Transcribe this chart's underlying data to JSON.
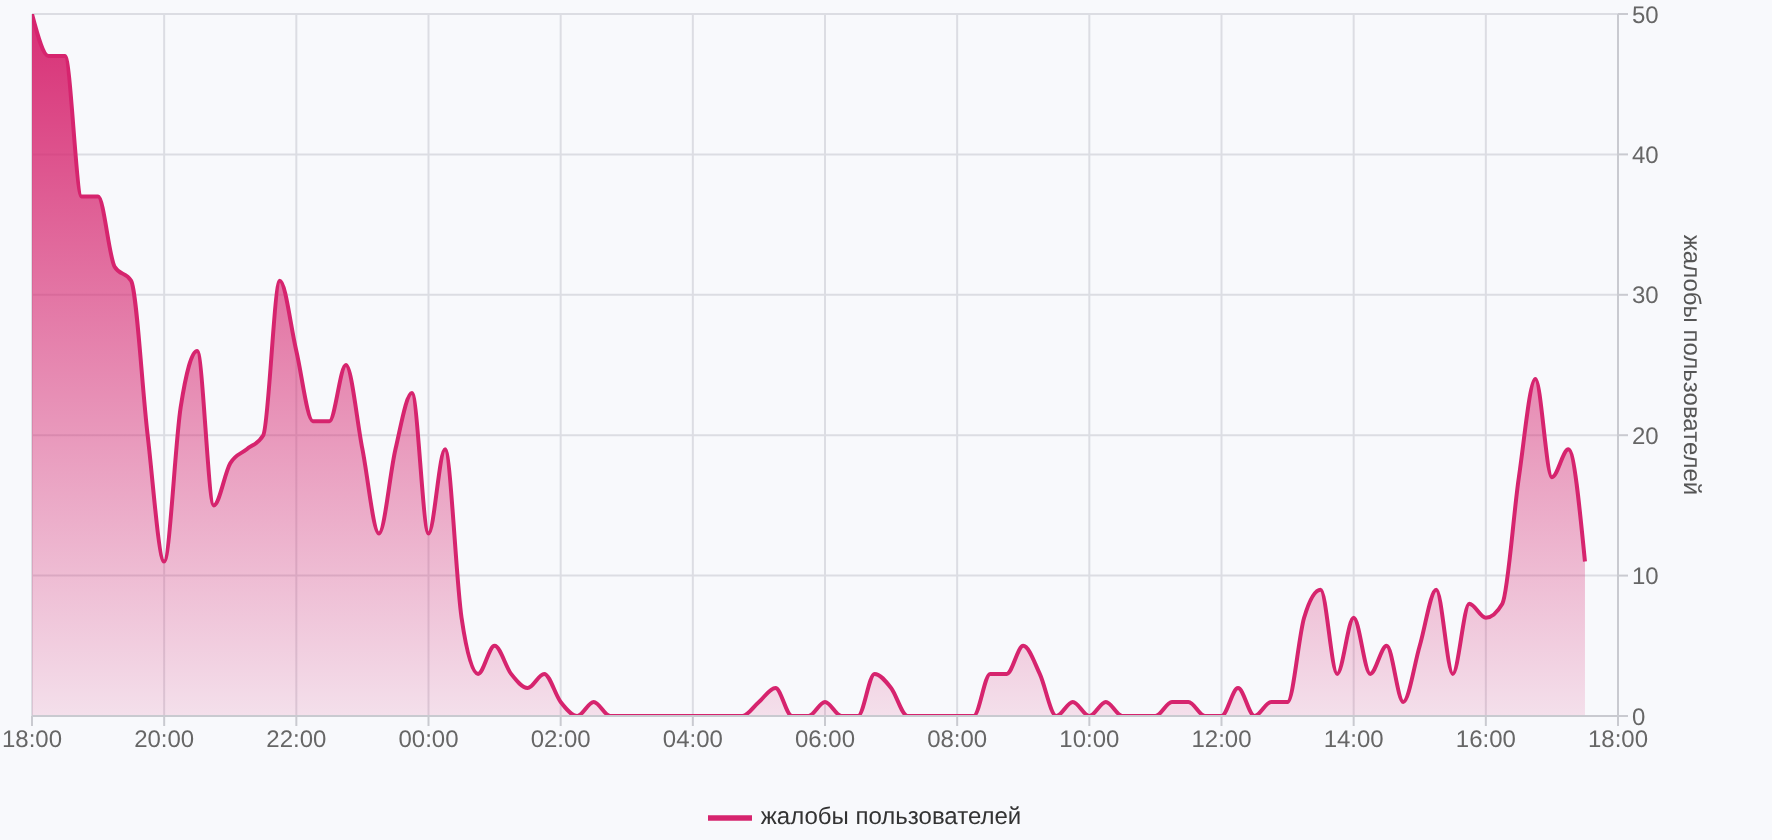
{
  "chart_data": {
    "type": "area",
    "x": [
      "--01-01T18:00",
      "--01-01T18:15",
      "--01-01T18:30",
      "--01-01T18:45",
      "--01-01T19:00",
      "--01-01T19:15",
      "--01-01T19:30",
      "--01-01T19:45",
      "--01-01T20:00",
      "--01-01T20:15",
      "--01-01T20:30",
      "--01-01T20:45",
      "--01-01T21:00",
      "--01-01T21:15",
      "--01-01T21:30",
      "--01-01T21:45",
      "--01-01T22:00",
      "--01-01T22:15",
      "--01-01T22:30",
      "--01-01T22:45",
      "--01-01T23:00",
      "--01-01T23:15",
      "--01-01T23:30",
      "--01-01T23:45",
      "--01-02T00:00",
      "--01-02T00:15",
      "--01-02T00:30",
      "--01-02T00:45",
      "--01-02T01:00",
      "--01-02T01:15",
      "--01-02T01:30",
      "--01-02T01:45",
      "--01-02T02:00",
      "--01-02T02:15",
      "--01-02T02:30",
      "--01-02T02:45",
      "--01-02T03:00",
      "--01-02T03:15",
      "--01-02T03:30",
      "--01-02T03:45",
      "--01-02T04:00",
      "--01-02T04:15",
      "--01-02T04:30",
      "--01-02T04:45",
      "--01-02T05:00",
      "--01-02T05:15",
      "--01-02T05:30",
      "--01-02T05:45",
      "--01-02T06:00",
      "--01-02T06:15",
      "--01-02T06:30",
      "--01-02T06:45",
      "--01-02T07:00",
      "--01-02T07:15",
      "--01-02T07:30",
      "--01-02T07:45",
      "--01-02T08:00",
      "--01-02T08:15",
      "--01-02T08:30",
      "--01-02T08:45",
      "--01-02T09:00",
      "--01-02T09:15",
      "--01-02T09:30",
      "--01-02T09:45",
      "--01-02T10:00",
      "--01-02T10:15",
      "--01-02T10:30",
      "--01-02T10:45",
      "--01-02T11:00",
      "--01-02T11:15",
      "--01-02T11:30",
      "--01-02T11:45",
      "--01-02T12:00",
      "--01-02T12:15",
      "--01-02T12:30",
      "--01-02T12:45",
      "--01-02T13:00",
      "--01-02T13:15",
      "--01-02T13:30",
      "--01-02T13:45",
      "--01-02T14:00",
      "--01-02T14:15",
      "--01-02T14:30",
      "--01-02T14:45",
      "--01-02T15:00",
      "--01-02T15:15",
      "--01-02T15:30",
      "--01-02T15:45",
      "--01-02T16:00",
      "--01-02T16:15",
      "--01-02T16:30",
      "--01-02T16:45",
      "--01-02T17:00",
      "--01-02T17:15",
      "--01-02T17:30"
    ],
    "series": [
      {
        "name": "жалобы пользователей",
        "color": "#d6246e",
        "values": [
          50,
          47,
          47,
          37,
          37,
          32,
          31,
          20,
          11,
          22,
          26,
          15,
          18,
          19,
          20,
          31,
          26,
          21,
          21,
          25,
          19,
          13,
          19,
          23,
          13,
          19,
          7,
          3,
          5,
          3,
          2,
          3,
          1,
          0,
          1,
          0,
          0,
          0,
          0,
          0,
          0,
          0,
          0,
          0,
          1,
          2,
          0,
          0,
          1,
          0,
          0,
          3,
          2,
          0,
          0,
          0,
          0,
          0,
          3,
          3,
          5,
          3,
          0,
          1,
          0,
          1,
          0,
          0,
          0,
          1,
          1,
          0,
          0,
          2,
          0,
          1,
          1,
          7,
          9,
          3,
          7,
          3,
          5,
          1,
          5,
          9,
          3,
          8,
          7,
          8,
          17,
          24,
          17,
          19,
          11
        ]
      }
    ],
    "xlim": [
      "--01-01T18:00",
      "--01-02T18:00"
    ],
    "xticks": [
      {
        "value": "--01-01T18:00",
        "label": "18:00"
      },
      {
        "value": "--01-01T20:00",
        "label": "20:00"
      },
      {
        "value": "--01-01T22:00",
        "label": "22:00"
      },
      {
        "value": "--01-02T00:00",
        "label": "00:00"
      },
      {
        "value": "--01-02T02:00",
        "label": "02:00"
      },
      {
        "value": "--01-02T04:00",
        "label": "04:00"
      },
      {
        "value": "--01-02T06:00",
        "label": "06:00"
      },
      {
        "value": "--01-02T08:00",
        "label": "08:00"
      },
      {
        "value": "--01-02T10:00",
        "label": "10:00"
      },
      {
        "value": "--01-02T12:00",
        "label": "12:00"
      },
      {
        "value": "--01-02T14:00",
        "label": "14:00"
      },
      {
        "value": "--01-02T16:00",
        "label": "16:00"
      },
      {
        "value": "--01-02T18:00",
        "label": "18:00"
      }
    ],
    "ylim": [
      0,
      50
    ],
    "yticks": [
      0,
      10,
      20,
      30,
      40,
      50
    ],
    "ylabel": "жалобы пользователей",
    "grid": true,
    "legend": "bottom"
  }
}
